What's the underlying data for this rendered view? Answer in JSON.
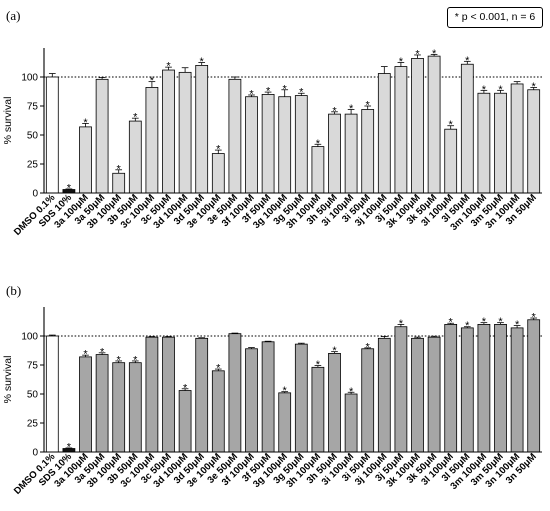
{
  "legend": {
    "text": "* p < 0.001, n = 6"
  },
  "chart_data": [
    {
      "panel": "(a)",
      "type": "bar",
      "ylabel": "% survival",
      "ylim": [
        0,
        125
      ],
      "yticks": [
        0,
        25,
        50,
        75,
        100
      ],
      "reference_line": 100,
      "categories": [
        "DMSO 0.1%",
        "SDS 10%",
        "3a 100μM",
        "3a 50μM",
        "3b 100μM",
        "3b 50μM",
        "3c 100μM",
        "3c 50μM",
        "3d 100μM",
        "3d 50μM",
        "3e 100μM",
        "3e 50μM",
        "3f 100μM",
        "3f 50μM",
        "3g 100μM",
        "3g 50μM",
        "3h 100μM",
        "3h 50μM",
        "3i 100μM",
        "3i 50μM",
        "3j 100μM",
        "3j 50μM",
        "3k 100μM",
        "3k 50μM",
        "3l 100μM",
        "3l 50μM",
        "3m 100μM",
        "3m 50μM",
        "3n 100μM",
        "3n 50μM"
      ],
      "values": [
        100,
        3,
        57,
        98,
        17,
        62,
        91,
        106,
        104,
        110,
        34,
        98,
        83,
        85,
        83,
        84,
        40,
        68,
        68,
        72,
        103,
        109,
        116,
        118,
        55,
        111,
        86,
        86,
        94,
        89
      ],
      "errors": [
        3,
        0.5,
        3,
        1.5,
        3,
        2.5,
        5,
        2.5,
        4,
        2.5,
        3,
        2,
        1.5,
        2,
        6,
        2,
        2,
        2,
        4,
        3,
        6,
        3.5,
        3,
        1.5,
        3,
        2.5,
        2.5,
        2.5,
        2,
        2
      ],
      "significant": [
        false,
        true,
        true,
        false,
        true,
        true,
        true,
        true,
        false,
        true,
        true,
        false,
        true,
        true,
        true,
        true,
        true,
        true,
        true,
        true,
        false,
        true,
        true,
        true,
        true,
        true,
        true,
        true,
        false,
        true
      ],
      "bar_colors": [
        "#ffffff",
        "#111111",
        "#d9d9d9"
      ]
    },
    {
      "panel": "(b)",
      "type": "bar",
      "ylabel": "% survival",
      "ylim": [
        0,
        125
      ],
      "yticks": [
        0,
        25,
        50,
        75,
        100
      ],
      "reference_line": 100,
      "categories": [
        "DMSO 0.1%",
        "SDS 10%",
        "3a 100μM",
        "3a 50μM",
        "3b 100μM",
        "3b 50μM",
        "3c 100μM",
        "3c 50μM",
        "3d 100μM",
        "3d 50μM",
        "3e 100μM",
        "3e 50μM",
        "3f 100μM",
        "3f 50μM",
        "3g 100μM",
        "3g 50μM",
        "3h 100μM",
        "3h 50μM",
        "3i 100μM",
        "3i 50μM",
        "3j 100μM",
        "3j 50μM",
        "3k 100μM",
        "3k 50μM",
        "3l 100μM",
        "3l 50μM",
        "3m 100μM",
        "3m 50μM",
        "3n 100μM",
        "3n 50μM"
      ],
      "values": [
        100,
        3,
        82,
        84,
        77,
        77,
        99,
        99,
        53,
        98,
        70,
        102,
        89,
        95,
        51,
        93,
        73,
        85,
        50,
        89,
        98,
        108,
        98,
        99,
        110,
        107,
        110,
        110,
        107,
        114
      ],
      "errors": [
        0.8,
        0.5,
        1.5,
        1.5,
        1.5,
        1.5,
        0.5,
        0.5,
        1.5,
        0.5,
        1.5,
        0.5,
        1,
        0.5,
        1,
        0.8,
        1.5,
        1.5,
        1.5,
        0.8,
        1.5,
        2,
        1,
        0.8,
        1,
        1,
        1.5,
        1.5,
        2,
        1.5
      ],
      "significant": [
        false,
        true,
        true,
        true,
        true,
        true,
        false,
        false,
        true,
        false,
        true,
        false,
        false,
        false,
        true,
        false,
        true,
        true,
        true,
        true,
        false,
        true,
        false,
        false,
        true,
        true,
        true,
        true,
        true,
        true
      ],
      "bar_colors": [
        "#ffffff",
        "#111111",
        "#a6a6a6"
      ]
    }
  ]
}
